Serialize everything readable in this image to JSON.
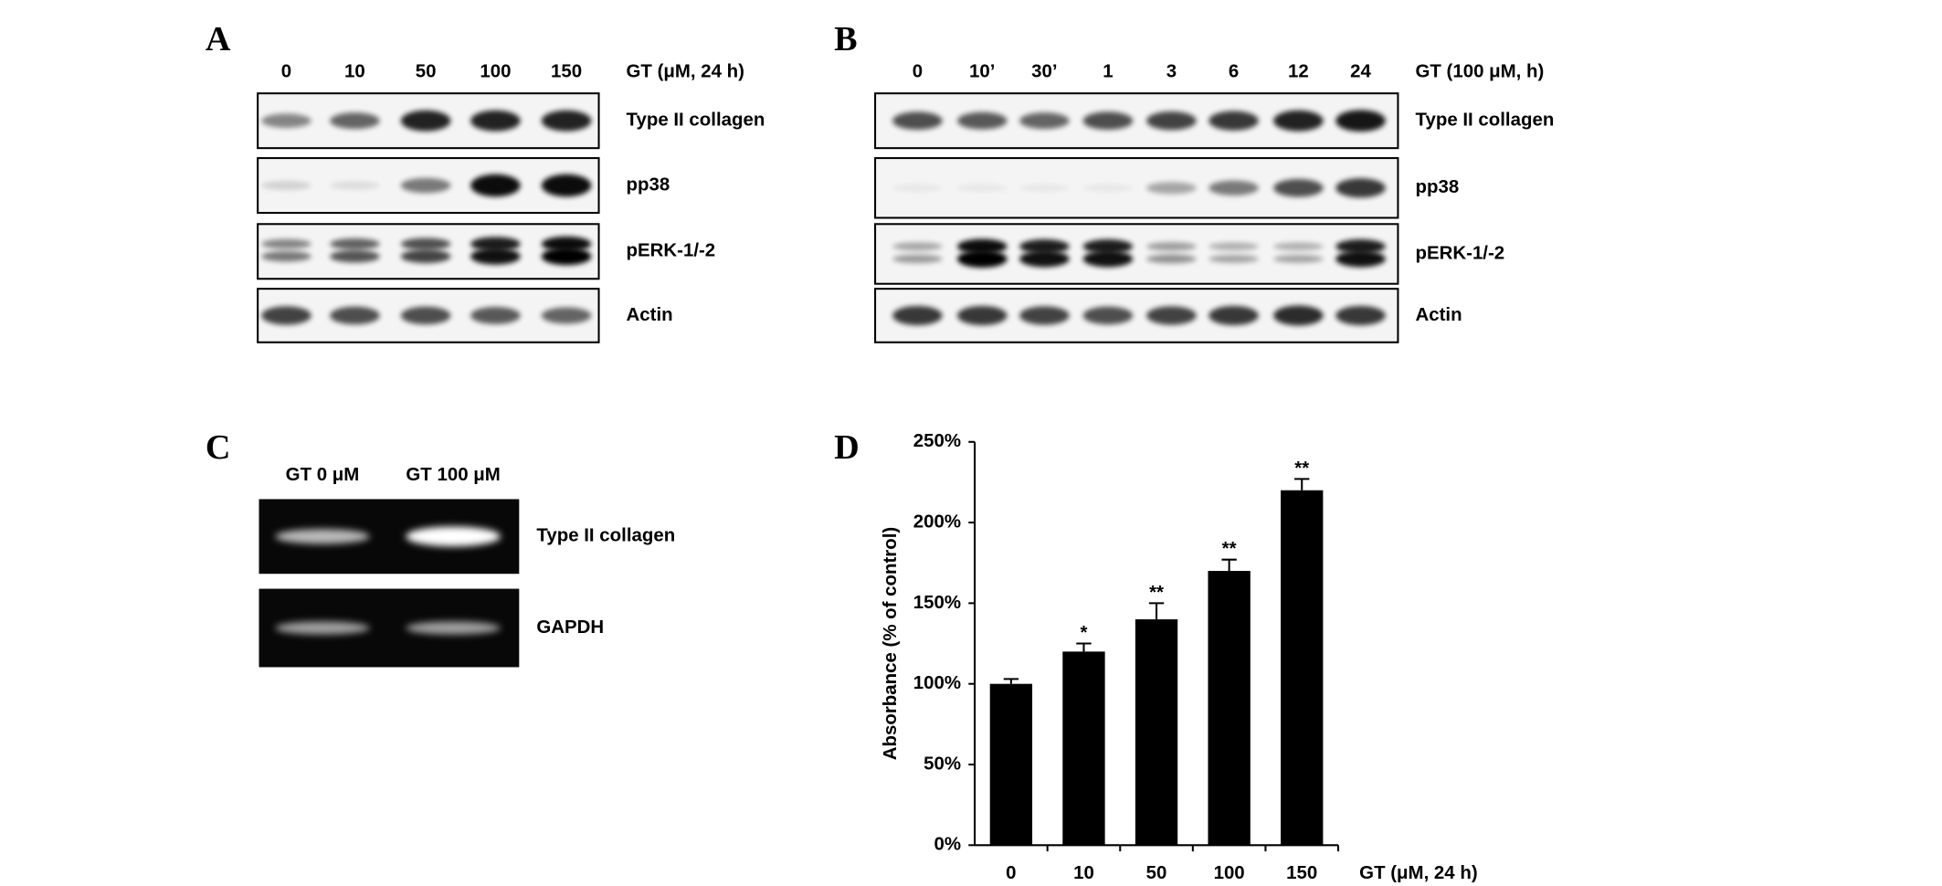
{
  "panel_a": {
    "letter": "A",
    "header": "GT (μM, 24 h)",
    "lanes": [
      "0",
      "10",
      "50",
      "100",
      "150"
    ],
    "rows": [
      "Type II collagen",
      "pp38",
      "pERK-1/-2",
      "Actin"
    ]
  },
  "panel_b": {
    "letter": "B",
    "header": "GT (100 μM, h)",
    "lanes": [
      "0",
      "10’",
      "30’",
      "1",
      "3",
      "6",
      "12",
      "24"
    ],
    "rows": [
      "Type II collagen",
      "pp38",
      "pERK-1/-2",
      "Actin"
    ]
  },
  "panel_c": {
    "letter": "C",
    "lanes": [
      "GT 0 μM",
      "GT 100 μM"
    ],
    "rows": [
      "Type II collagen",
      "GAPDH"
    ]
  },
  "chart_data": {
    "type": "bar",
    "panel_letter": "D",
    "categories": [
      "0",
      "10",
      "50",
      "100",
      "150"
    ],
    "values": [
      100,
      120,
      140,
      170,
      220
    ],
    "errors": [
      3,
      5,
      10,
      7,
      7
    ],
    "annotations": [
      null,
      "*",
      "**",
      "**",
      "**"
    ],
    "color": "#000000",
    "ylim": [
      0,
      250
    ],
    "yticks": [
      {
        "value": 0,
        "label": "0%"
      },
      {
        "value": 50,
        "label": "50%"
      },
      {
        "value": 100,
        "label": "100%"
      },
      {
        "value": 150,
        "label": "150%"
      },
      {
        "value": 200,
        "label": "200%"
      },
      {
        "value": 250,
        "label": "250%"
      }
    ],
    "ylabel": "Absorbance (% of control)",
    "xlabel": "GT (μM, 24 h)"
  }
}
